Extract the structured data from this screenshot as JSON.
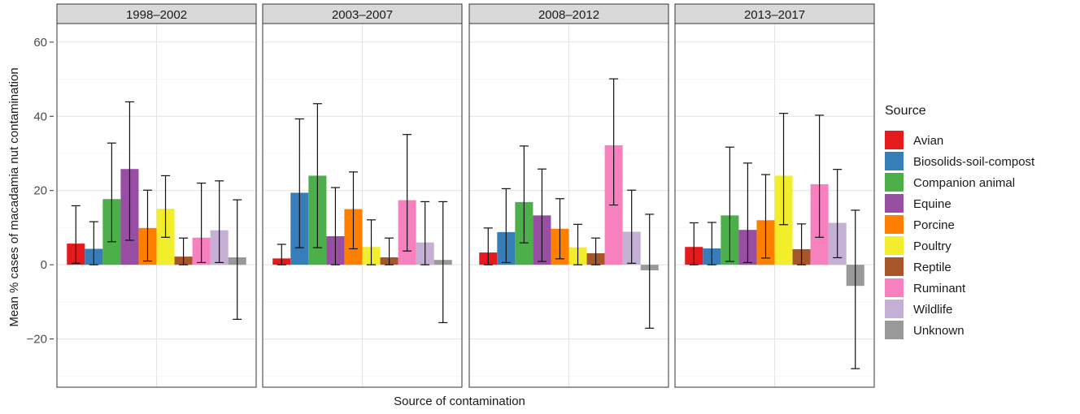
{
  "chart_data": {
    "type": "bar",
    "xlabel": "Source of contamination",
    "ylabel": "Mean % cases of macadamia nut contamination",
    "ylim": [
      -33,
      65
    ],
    "yticks": [
      -20,
      0,
      20,
      40,
      60
    ],
    "grid": true,
    "legend": {
      "title": "Source",
      "position": "right",
      "items": [
        "Avian",
        "Biosolids-soil-compost",
        "Companion animal",
        "Equine",
        "Porcine",
        "Poultry",
        "Reptile",
        "Ruminant",
        "Wildlife",
        "Unknown"
      ]
    },
    "colors": [
      "#e41a1c",
      "#377eb8",
      "#4daf4a",
      "#984ea3",
      "#ff7f00",
      "#f2ee2c",
      "#a65628",
      "#f781bf",
      "#c5b0d5",
      "#999999"
    ],
    "panels": [
      {
        "label": "1998–2002",
        "values": [
          5.7,
          4.3,
          17.7,
          25.8,
          9.9,
          15.1,
          2.2,
          7.3,
          9.3,
          2.0
        ],
        "error_low": [
          0.4,
          0.0,
          6.2,
          6.6,
          1.0,
          7.4,
          0.0,
          0.6,
          0.6,
          -14.7
        ],
        "error_high": [
          15.9,
          11.6,
          32.8,
          43.9,
          20.1,
          24.0,
          7.2,
          22.0,
          22.6,
          17.5
        ]
      },
      {
        "label": "2003–2007",
        "values": [
          1.7,
          19.4,
          24.0,
          7.7,
          15.0,
          4.8,
          2.0,
          17.4,
          6.0,
          1.3
        ],
        "error_low": [
          0.0,
          4.6,
          4.6,
          0.0,
          4.3,
          0.0,
          0.0,
          3.7,
          0.0,
          -15.6
        ],
        "error_high": [
          5.5,
          39.3,
          43.4,
          20.8,
          25.0,
          12.1,
          7.2,
          35.1,
          17.0,
          17.0
        ]
      },
      {
        "label": "2008–2012",
        "values": [
          3.3,
          8.8,
          16.9,
          13.3,
          9.7,
          4.7,
          3.1,
          32.2,
          8.9,
          -1.5
        ],
        "error_low": [
          0.0,
          0.6,
          5.9,
          0.9,
          1.6,
          0.0,
          0.0,
          16.1,
          0.4,
          -17.1
        ],
        "error_high": [
          9.9,
          20.5,
          32.0,
          25.8,
          17.8,
          10.9,
          7.2,
          50.1,
          20.1,
          13.6
        ]
      },
      {
        "label": "2013–2017",
        "values": [
          4.8,
          4.4,
          13.3,
          9.4,
          12.0,
          24.0,
          4.2,
          21.7,
          11.3,
          -5.7
        ],
        "error_low": [
          0.0,
          0.0,
          0.9,
          0.6,
          1.8,
          10.8,
          0.0,
          7.4,
          1.9,
          -28.0
        ],
        "error_high": [
          11.3,
          11.4,
          31.7,
          27.4,
          24.3,
          40.8,
          11.0,
          40.3,
          25.7,
          14.7
        ]
      }
    ]
  }
}
